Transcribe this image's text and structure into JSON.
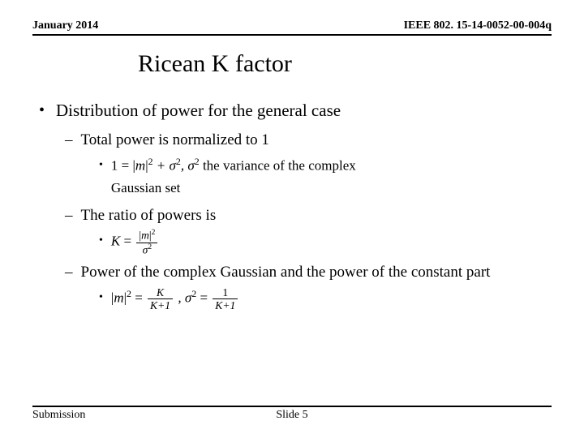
{
  "header": {
    "left": "January 2014",
    "right": "IEEE 802. 15-14-0052-00-004q"
  },
  "title": "Ricean K factor",
  "body": {
    "b1": "Distribution of power for the general case",
    "s1": "Total power is normalized to 1",
    "e1a": "1 =  |",
    "e1b": "m",
    "e1c": "|",
    "e1d": "2",
    "e1e": " + σ",
    "e1f": "2",
    "e1g": ", σ",
    "e1h": "2",
    "e1i": "  the variance of the complex",
    "e1j": "Gaussian set",
    "s2": "The ratio of powers is",
    "e2a": "K",
    "e2b": " =  ",
    "e2num_a": "|",
    "e2num_b": "m",
    "e2num_c": "|",
    "e2num_d": "2",
    "e2den_a": "σ",
    "e2den_b": "2",
    "s3": "Power of the complex Gaussian and the power of the constant part",
    "e3a": "|",
    "e3b": "m",
    "e3c": "|",
    "e3d": "2",
    "e3e": " = ",
    "e3f_num": "K",
    "e3f_den": "K+1",
    "e3g": " , σ",
    "e3h": "2",
    "e3i": " = ",
    "e3j_num": "1",
    "e3j_den": "K+1"
  },
  "footer": {
    "left": "Submission",
    "center": "Slide 5"
  }
}
